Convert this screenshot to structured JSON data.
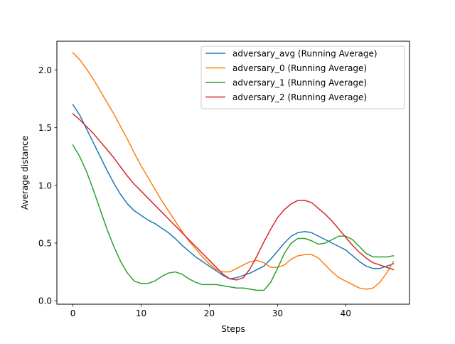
{
  "chart_data": {
    "type": "line",
    "title": "",
    "xlabel": "Steps",
    "ylabel": "Average distance",
    "xlim": [
      -2.35,
      49.35
    ],
    "ylim": [
      -0.03,
      2.25
    ],
    "x_ticks": [
      0,
      10,
      20,
      30,
      40
    ],
    "x_tick_labels": [
      "0",
      "10",
      "20",
      "30",
      "40"
    ],
    "y_ticks": [
      0.0,
      0.5,
      1.0,
      1.5,
      2.0
    ],
    "y_tick_labels": [
      "0.0",
      "0.5",
      "1.0",
      "1.5",
      "2.0"
    ],
    "grid": false,
    "legend_position": "top-right",
    "x": [
      0,
      1,
      2,
      3,
      4,
      5,
      6,
      7,
      8,
      9,
      10,
      11,
      12,
      13,
      14,
      15,
      16,
      17,
      18,
      19,
      20,
      21,
      22,
      23,
      24,
      25,
      26,
      27,
      28,
      29,
      30,
      31,
      32,
      33,
      34,
      35,
      36,
      37,
      38,
      39,
      40,
      41,
      42,
      43,
      44,
      45,
      46,
      47
    ],
    "series": [
      {
        "name": "adversary_avg (Running Average)",
        "color": "#1f77b4",
        "values": [
          1.7,
          1.61,
          1.49,
          1.37,
          1.25,
          1.13,
          1.02,
          0.92,
          0.84,
          0.78,
          0.74,
          0.7,
          0.67,
          0.63,
          0.59,
          0.54,
          0.48,
          0.43,
          0.38,
          0.34,
          0.3,
          0.26,
          0.22,
          0.19,
          0.2,
          0.22,
          0.24,
          0.27,
          0.3,
          0.36,
          0.43,
          0.5,
          0.56,
          0.59,
          0.6,
          0.59,
          0.56,
          0.53,
          0.5,
          0.47,
          0.44,
          0.39,
          0.34,
          0.3,
          0.28,
          0.28,
          0.3,
          0.32
        ]
      },
      {
        "name": "adversary_0 (Running Average)",
        "color": "#ff7f0e",
        "values": [
          2.15,
          2.09,
          2.01,
          1.92,
          1.82,
          1.72,
          1.62,
          1.51,
          1.4,
          1.28,
          1.17,
          1.07,
          0.97,
          0.87,
          0.78,
          0.69,
          0.6,
          0.52,
          0.45,
          0.38,
          0.32,
          0.27,
          0.25,
          0.25,
          0.28,
          0.31,
          0.34,
          0.35,
          0.33,
          0.29,
          0.29,
          0.31,
          0.36,
          0.39,
          0.4,
          0.4,
          0.37,
          0.31,
          0.25,
          0.2,
          0.17,
          0.14,
          0.11,
          0.1,
          0.11,
          0.16,
          0.24,
          0.34
        ]
      },
      {
        "name": "adversary_1 (Running Average)",
        "color": "#2ca02c",
        "values": [
          1.35,
          1.25,
          1.12,
          0.96,
          0.79,
          0.62,
          0.47,
          0.34,
          0.24,
          0.17,
          0.15,
          0.15,
          0.17,
          0.21,
          0.24,
          0.25,
          0.23,
          0.19,
          0.16,
          0.14,
          0.14,
          0.14,
          0.13,
          0.12,
          0.11,
          0.11,
          0.1,
          0.09,
          0.09,
          0.16,
          0.28,
          0.41,
          0.5,
          0.54,
          0.54,
          0.52,
          0.49,
          0.5,
          0.53,
          0.56,
          0.56,
          0.53,
          0.47,
          0.41,
          0.38,
          0.38,
          0.38,
          0.39
        ]
      },
      {
        "name": "adversary_2 (Running Average)",
        "color": "#d62728",
        "values": [
          1.62,
          1.57,
          1.51,
          1.45,
          1.38,
          1.31,
          1.24,
          1.16,
          1.08,
          1.01,
          0.95,
          0.89,
          0.83,
          0.77,
          0.71,
          0.65,
          0.59,
          0.53,
          0.47,
          0.41,
          0.35,
          0.29,
          0.23,
          0.19,
          0.18,
          0.2,
          0.28,
          0.39,
          0.51,
          0.62,
          0.72,
          0.79,
          0.84,
          0.87,
          0.87,
          0.85,
          0.8,
          0.75,
          0.69,
          0.62,
          0.55,
          0.48,
          0.42,
          0.37,
          0.33,
          0.31,
          0.29,
          0.27
        ]
      }
    ]
  }
}
